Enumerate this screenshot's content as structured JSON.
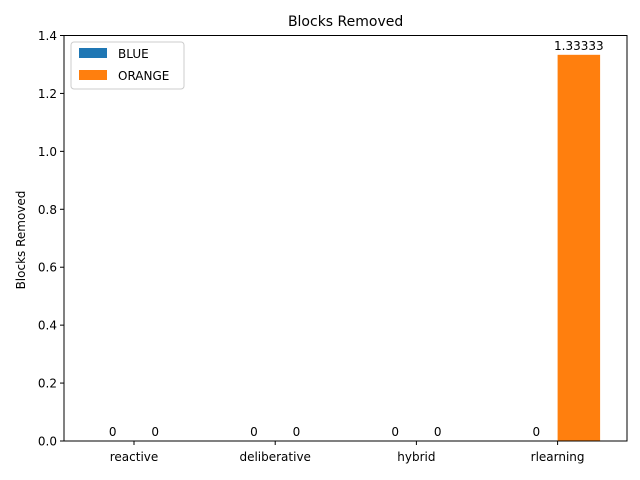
{
  "chart_data": {
    "type": "bar",
    "title": "Blocks Removed",
    "xlabel": "",
    "ylabel": "Blocks Removed",
    "categories": [
      "reactive",
      "deliberative",
      "hybrid",
      "rlearning"
    ],
    "series": [
      {
        "name": "BLUE",
        "color": "#1f77b4",
        "values": [
          0,
          0,
          0,
          0
        ],
        "labels": [
          "0",
          "0",
          "0",
          "0"
        ]
      },
      {
        "name": "ORANGE",
        "color": "#ff7f0e",
        "values": [
          0,
          0,
          0,
          1.33333
        ],
        "labels": [
          "0",
          "0",
          "0",
          "1.33333"
        ]
      }
    ],
    "ylim": [
      0,
      1.4
    ],
    "yticks": [
      "0.0",
      "0.2",
      "0.4",
      "0.6",
      "0.8",
      "1.0",
      "1.2",
      "1.4"
    ],
    "grid": false,
    "legend_position": "top-left"
  }
}
